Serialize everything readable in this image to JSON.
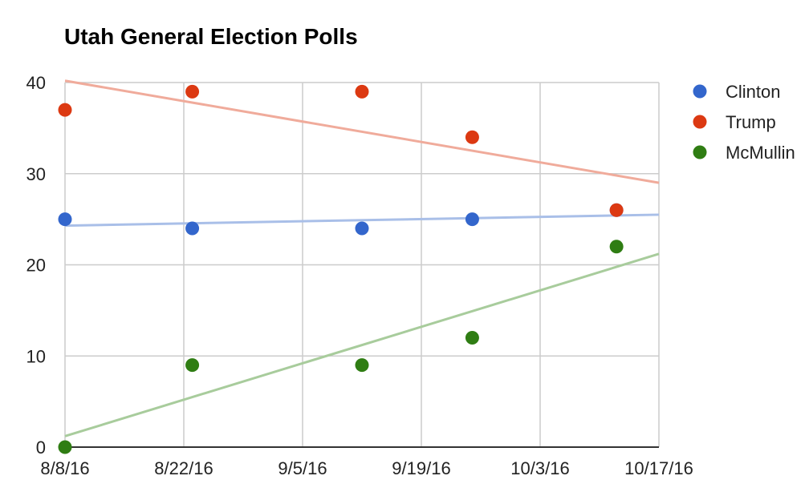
{
  "chart_data": {
    "type": "scatter",
    "title": "Utah General Election Polls",
    "xlabel": "",
    "ylabel": "",
    "x_ticks": [
      "8/8/16",
      "8/22/16",
      "9/5/16",
      "9/19/16",
      "10/3/16",
      "10/17/16"
    ],
    "x_range": [
      "2016-08-08",
      "2016-10-17"
    ],
    "ylim": [
      0,
      40
    ],
    "y_ticks": [
      0,
      10,
      20,
      30,
      40
    ],
    "grid": true,
    "legend_position": "right",
    "trendlines": true,
    "series": [
      {
        "name": "Clinton",
        "color": "#3366cc",
        "trend_color": "#a9bfe8",
        "points": [
          {
            "x": "2016-08-08",
            "y": 25
          },
          {
            "x": "2016-08-23",
            "y": 24
          },
          {
            "x": "2016-09-12",
            "y": 24
          },
          {
            "x": "2016-09-25",
            "y": 25
          },
          {
            "x": "2016-10-12",
            "y": 26
          }
        ],
        "trend": [
          {
            "x": "2016-08-08",
            "y": 24.3
          },
          {
            "x": "2016-10-17",
            "y": 25.5
          }
        ]
      },
      {
        "name": "Trump",
        "color": "#dc3912",
        "trend_color": "#f0ab9b",
        "points": [
          {
            "x": "2016-08-08",
            "y": 37
          },
          {
            "x": "2016-08-23",
            "y": 39
          },
          {
            "x": "2016-09-12",
            "y": 39
          },
          {
            "x": "2016-09-25",
            "y": 34
          },
          {
            "x": "2016-10-12",
            "y": 26
          }
        ],
        "trend": [
          {
            "x": "2016-08-08",
            "y": 40.2
          },
          {
            "x": "2016-10-17",
            "y": 29
          }
        ]
      },
      {
        "name": "McMullin",
        "color": "#2f7d13",
        "trend_color": "#a8cc9c",
        "points": [
          {
            "x": "2016-08-08",
            "y": 0
          },
          {
            "x": "2016-08-23",
            "y": 9
          },
          {
            "x": "2016-09-12",
            "y": 9
          },
          {
            "x": "2016-09-25",
            "y": 12
          },
          {
            "x": "2016-10-12",
            "y": 22
          }
        ],
        "trend": [
          {
            "x": "2016-08-08",
            "y": 1.2
          },
          {
            "x": "2016-10-17",
            "y": 21.2
          }
        ]
      }
    ]
  }
}
